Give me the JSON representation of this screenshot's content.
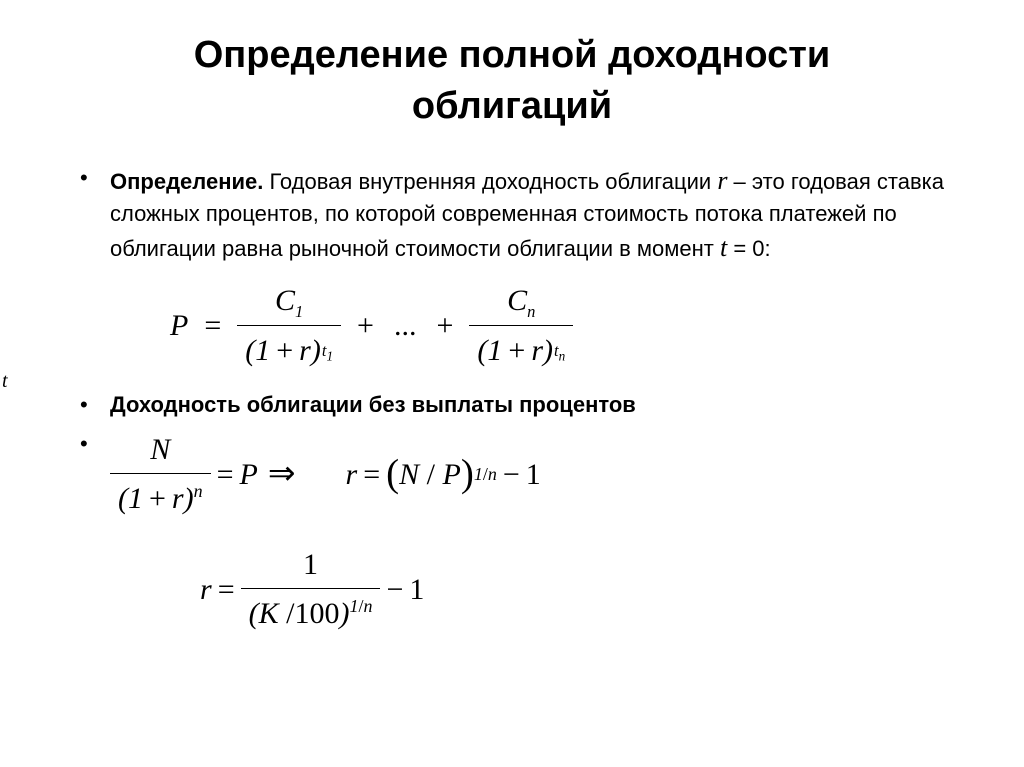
{
  "title_line1": "Определение полной доходности",
  "title_line2": "облигаций",
  "definition_label": "Определение.",
  "def_part1": " Годовая внутренняя доходность облигации  ",
  "var_r": "r",
  "def_part2": "  – это годовая ставка сложных процентов, по которой современная стоимость потока платежей по облигации равна рыночной стоимости облигации в момент  ",
  "var_t": "t",
  "def_part3": "  = 0:",
  "subheading": "Доходность  облигации  без выплаты процентов",
  "side_t": "t",
  "formula1": {
    "P": "P",
    "C": "C",
    "one": "1",
    "r": "r",
    "t": "t",
    "n": "n",
    "sub1": "1",
    "subn": "n"
  },
  "formula2": {
    "N": "N",
    "one": "1",
    "r": "r",
    "n": "n",
    "P": "P",
    "slash": "/",
    "minus1": "1"
  },
  "formula3": {
    "r": "r",
    "one": "1",
    "K": "K",
    "hundred": "100",
    "n": "n",
    "slash": "/",
    "minus1": "1"
  }
}
